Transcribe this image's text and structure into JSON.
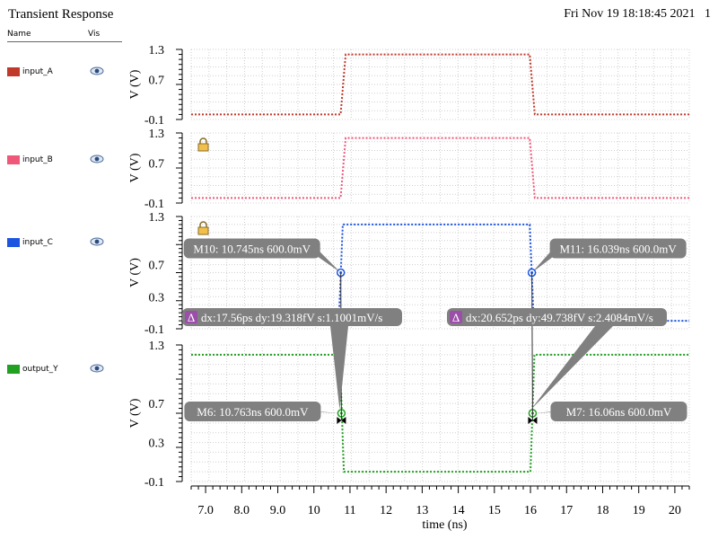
{
  "header": {
    "title": "Transient Response",
    "date": "Fri Nov 19 18:18:45 2021",
    "page": "1"
  },
  "legend": {
    "name_label": "Name",
    "vis_label": "Vis",
    "items": [
      {
        "label": "input_A",
        "color": "#c0392b",
        "icon": "eye-icon"
      },
      {
        "label": "input_B",
        "color": "#f0587a",
        "icon": "eye-icon"
      },
      {
        "label": "input_C",
        "color": "#1c55e0",
        "icon": "eye-icon"
      },
      {
        "label": "output_Y",
        "color": "#22a022",
        "icon": "eye-icon"
      }
    ]
  },
  "chart_data": {
    "type": "line",
    "xlabel": "time (ns)",
    "xlim": [
      6.6,
      20.4
    ],
    "x_ticks": [
      "7.0",
      "8.0",
      "9.0",
      "10",
      "11",
      "12",
      "13",
      "14",
      "15",
      "16",
      "17",
      "18",
      "19",
      "20"
    ],
    "grid": true,
    "panels": [
      {
        "name": "input_A",
        "color": "#c0392b",
        "ylabel": "V (V)",
        "ylim": [
          -0.1,
          1.3
        ],
        "y_ticks": [
          "1.3",
          "0.7",
          "-0.1"
        ],
        "locked": false,
        "x": [
          6.6,
          10.74,
          10.88,
          15.98,
          16.12,
          20.4
        ],
        "y": [
          0.0,
          0.0,
          1.2,
          1.2,
          0.0,
          0.0
        ]
      },
      {
        "name": "input_B",
        "color": "#f0587a",
        "ylabel": "V (V)",
        "ylim": [
          -0.1,
          1.3
        ],
        "y_ticks": [
          "1.3",
          "0.7",
          "-0.1"
        ],
        "locked": true,
        "x": [
          6.6,
          10.74,
          10.88,
          15.98,
          16.12,
          20.4
        ],
        "y": [
          0.0,
          0.0,
          1.2,
          1.2,
          0.0,
          0.0
        ]
      },
      {
        "name": "input_C",
        "color": "#1c55e0",
        "ylabel": "V (V)",
        "ylim": [
          -0.1,
          1.3
        ],
        "y_ticks": [
          "1.3",
          "0.7",
          "0.3",
          "-0.1"
        ],
        "locked": true,
        "x": [
          6.6,
          10.69,
          10.8,
          15.98,
          16.09,
          20.4
        ],
        "y": [
          0.0,
          0.0,
          1.2,
          1.2,
          0.0,
          0.0
        ]
      },
      {
        "name": "output_Y",
        "color": "#22a022",
        "ylabel": "V (V)",
        "ylim": [
          -0.1,
          1.3
        ],
        "y_ticks": [
          "1.3",
          "0.7",
          "0.3",
          "-0.1"
        ],
        "locked": false,
        "x": [
          6.6,
          10.72,
          10.83,
          16.0,
          16.11,
          20.4
        ],
        "y": [
          1.2,
          1.2,
          0.0,
          0.0,
          1.2,
          1.2
        ]
      }
    ],
    "markers": [
      {
        "id": "M10",
        "panel": 2,
        "t": 10.745,
        "v": 0.6,
        "text": "M10: 10.745ns 600.0mV",
        "side": "left"
      },
      {
        "id": "M11",
        "panel": 2,
        "t": 16.039,
        "v": 0.6,
        "text": "M11: 16.039ns 600.0mV",
        "side": "right"
      },
      {
        "id": "M6",
        "panel": 3,
        "t": 10.763,
        "v": 0.6,
        "text": "M6: 10.763ns 600.0mV",
        "side": "left"
      },
      {
        "id": "M7",
        "panel": 3,
        "t": 16.06,
        "v": 0.6,
        "text": "M7: 16.06ns 600.0mV",
        "side": "right"
      }
    ],
    "deltas": [
      {
        "symbol": "Δ",
        "text": "dx:17.56ps dy:19.318fV s:1.1001mV/s",
        "from": "M10",
        "to": "M6"
      },
      {
        "symbol": "Δ",
        "text": "dx:20.652ps dy:49.738fV s:2.4084mV/s",
        "from": "M11",
        "to": "M7"
      }
    ]
  }
}
